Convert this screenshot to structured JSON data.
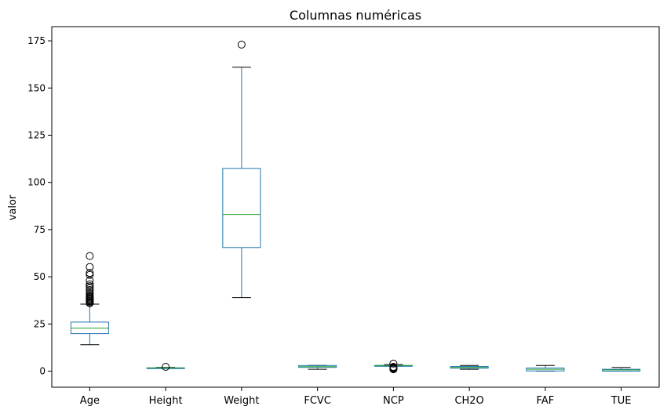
{
  "chart_data": {
    "type": "boxplot",
    "title": "Columnas numéricas",
    "xlabel": "",
    "ylabel": "valor",
    "ylim": [
      -8.5,
      182.5
    ],
    "yticks": [
      0,
      25,
      50,
      75,
      100,
      125,
      150,
      175
    ],
    "grid": false,
    "colors": {
      "box": "#1f77b4",
      "median": "#2ca02c",
      "whisker": "#1f77b4",
      "cap": "#000000",
      "outlier": "#000000"
    },
    "categories": [
      "Age",
      "Height",
      "Weight",
      "FCVC",
      "NCP",
      "CH2O",
      "FAF",
      "TUE"
    ],
    "boxes": [
      {
        "name": "Age",
        "whislo": 14,
        "q1": 19.9,
        "med": 22.8,
        "q3": 26,
        "whishi": 35.5,
        "fliers": [
          36,
          36.5,
          37,
          37.5,
          38,
          38.5,
          39,
          39.5,
          40,
          41,
          42,
          43,
          44,
          45,
          46,
          48,
          51,
          52,
          55.2,
          61
        ]
      },
      {
        "name": "Height",
        "whislo": 1.45,
        "q1": 1.63,
        "med": 1.7,
        "q3": 1.77,
        "whishi": 1.98,
        "fliers": [
          2.3
        ]
      },
      {
        "name": "Weight",
        "whislo": 39,
        "q1": 65.5,
        "med": 83,
        "q3": 107.4,
        "whishi": 161,
        "fliers": [
          173
        ]
      },
      {
        "name": "FCVC",
        "whislo": 1,
        "q1": 2,
        "med": 2.4,
        "q3": 3,
        "whishi": 3,
        "fliers": []
      },
      {
        "name": "NCP",
        "whislo": 2.66,
        "q1": 2.66,
        "med": 3,
        "q3": 3,
        "whishi": 3.5,
        "fliers": [
          1,
          1.3,
          1.6,
          2,
          2.3,
          4
        ]
      },
      {
        "name": "CH2O",
        "whislo": 1,
        "q1": 1.58,
        "med": 2,
        "q3": 2.48,
        "whishi": 3,
        "fliers": []
      },
      {
        "name": "FAF",
        "whislo": 0,
        "q1": 0.12,
        "med": 1,
        "q3": 1.67,
        "whishi": 3,
        "fliers": []
      },
      {
        "name": "TUE",
        "whislo": 0,
        "q1": 0,
        "med": 0.63,
        "q3": 1,
        "whishi": 2,
        "fliers": []
      }
    ]
  }
}
